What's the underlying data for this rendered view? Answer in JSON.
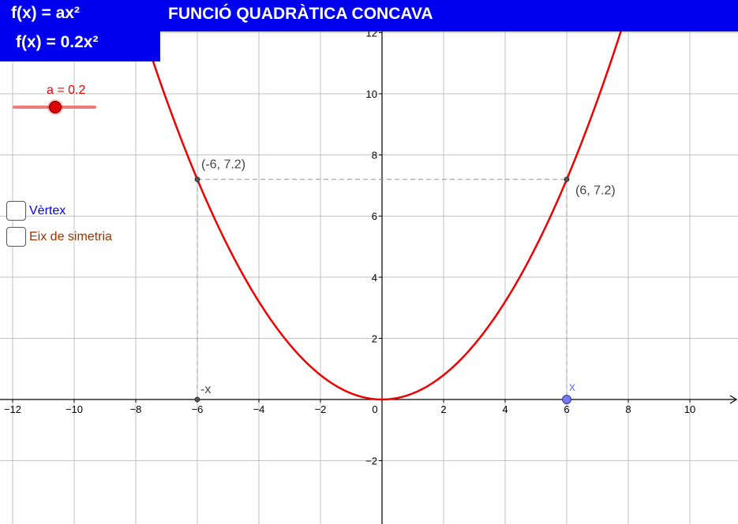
{
  "header": {
    "formula_general": "f(x) = ax²",
    "formula_specific": "f(x) = 0.2x²",
    "title": "FUNCIÓ QUADRÀTICA CONCAVA"
  },
  "slider": {
    "label": "a = 0.2",
    "value": 0.2
  },
  "checkboxes": [
    {
      "label": "Vèrtex",
      "checked": false,
      "color": "#0000ee"
    },
    {
      "label": "Eix de simetria",
      "checked": false,
      "color": "#993300"
    }
  ],
  "colors": {
    "curve": "#ee0000",
    "header": "#0000ee",
    "point_x": "#7777ee"
  },
  "chart_data": {
    "type": "line",
    "function": "f(x) = 0.2x²",
    "coefficient": 0.2,
    "xlim": [
      -12.5,
      11.5
    ],
    "ylim": [
      -3.9,
      12.6
    ],
    "grid": true,
    "x_ticks": [
      -12,
      -10,
      -8,
      -6,
      -4,
      -2,
      0,
      2,
      4,
      6,
      8,
      10
    ],
    "y_ticks": [
      -2,
      2,
      4,
      6,
      8,
      10,
      12
    ],
    "points": [
      {
        "x": -6,
        "y": 7.2,
        "label": "(-6, 7.2)"
      },
      {
        "x": 6,
        "y": 7.2,
        "label": "(6, 7.2)"
      }
    ],
    "axis_points": [
      {
        "x": -6,
        "label": "-x"
      },
      {
        "x": 6,
        "label": "x"
      }
    ]
  }
}
